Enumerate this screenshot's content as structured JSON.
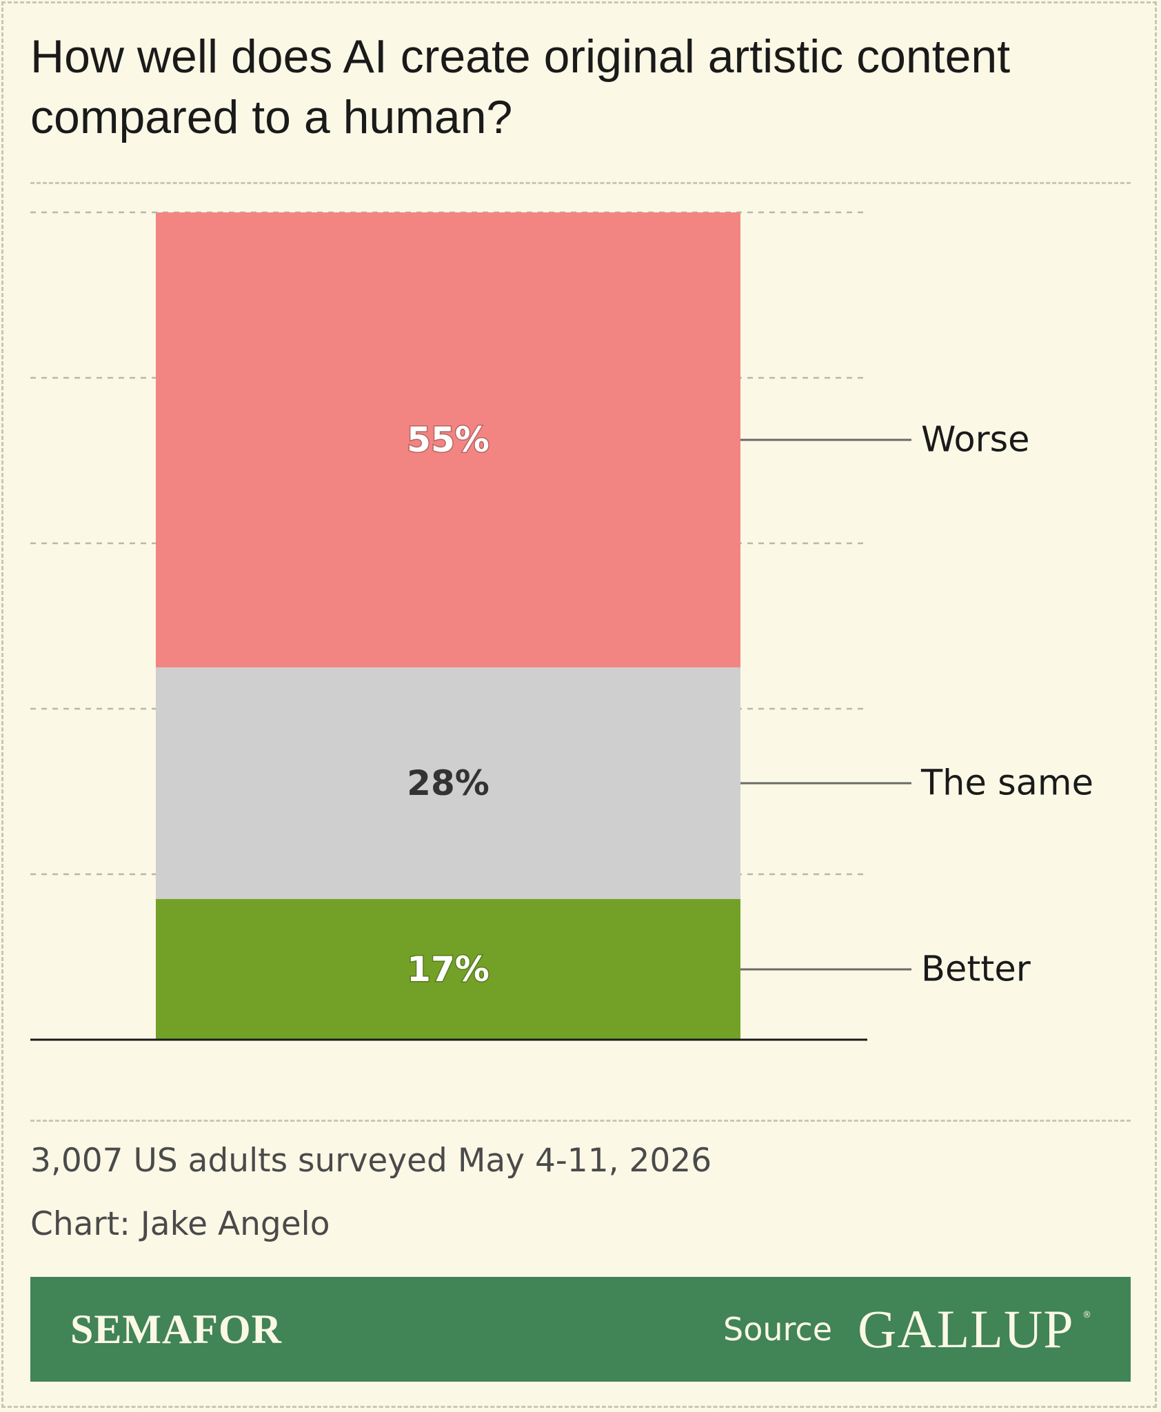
{
  "title": "How well does AI create original artistic content compared to a human?",
  "chart_data": {
    "type": "bar",
    "stacked": true,
    "categories": [
      ""
    ],
    "series": [
      {
        "name": "Better",
        "values": [
          17
        ],
        "label": "17%",
        "color": "#73a127",
        "label_color": "#ffffff"
      },
      {
        "name": "The same",
        "values": [
          28
        ],
        "label": "28%",
        "color": "#cfcfcf",
        "label_color": "#333333"
      },
      {
        "name": "Worse",
        "values": [
          55
        ],
        "label": "55%",
        "color": "#f28582",
        "label_color": "#ffffff"
      }
    ],
    "ylim": [
      0,
      100
    ],
    "grid": true,
    "legend": "direct-labels-right"
  },
  "notes": {
    "sample": "3,007 US adults surveyed May 4-11, 2026",
    "credit": "Chart: Jake Angelo"
  },
  "footer": {
    "brand": "SEMAFOR",
    "source_label": "Source",
    "source_name": "GALLUP",
    "source_mark": "®",
    "background": "#418455"
  }
}
